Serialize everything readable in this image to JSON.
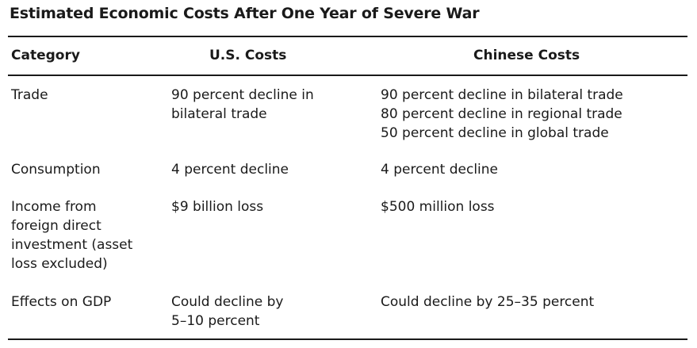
{
  "table": {
    "title": "Estimated Economic Costs After One Year of Severe War",
    "headers": {
      "category": "Category",
      "us": "U.S. Costs",
      "china": "Chinese Costs"
    },
    "rows": [
      {
        "category": [
          "Trade"
        ],
        "us": [
          "90 percent decline in",
          "bilateral trade"
        ],
        "china": [
          "90 percent decline in bilateral trade",
          "80 percent decline in regional trade",
          "50 percent decline in global trade"
        ]
      },
      {
        "category": [
          "Consumption"
        ],
        "us": [
          "4 percent decline"
        ],
        "china": [
          "4 percent decline"
        ]
      },
      {
        "category": [
          "Income from",
          "foreign direct",
          "investment (asset",
          "loss excluded)"
        ],
        "us": [
          "$9 billion loss"
        ],
        "china": [
          "$500 million loss"
        ]
      },
      {
        "category": [
          "Effects on GDP"
        ],
        "us": [
          "Could decline by",
          "5–10 percent"
        ],
        "china": [
          "Could decline by 25–35 percent"
        ]
      }
    ]
  }
}
